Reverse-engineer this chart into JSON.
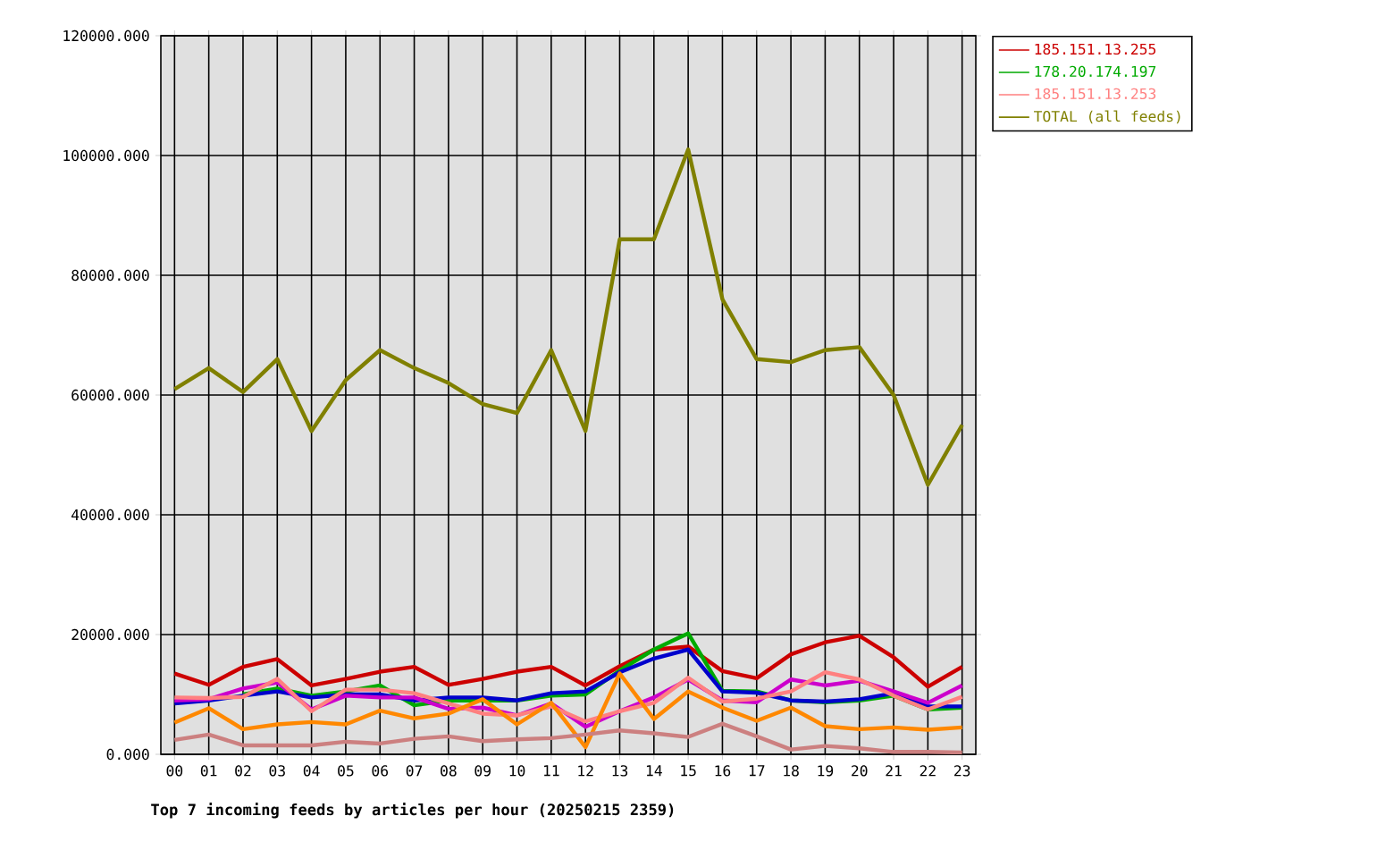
{
  "chart_data": {
    "type": "line",
    "title": "Top 7 incoming feeds by articles per hour (20250215 2359)",
    "categories": [
      "00",
      "01",
      "02",
      "03",
      "04",
      "05",
      "06",
      "07",
      "08",
      "09",
      "10",
      "11",
      "12",
      "13",
      "14",
      "15",
      "16",
      "17",
      "18",
      "19",
      "20",
      "21",
      "22",
      "23"
    ],
    "ylim": [
      0,
      120000
    ],
    "yticks": [
      {
        "value": 0,
        "label": "0.000"
      },
      {
        "value": 20000,
        "label": "20000.000"
      },
      {
        "value": 40000,
        "label": "40000.000"
      },
      {
        "value": 60000,
        "label": "60000.000"
      },
      {
        "value": 80000,
        "label": "80000.000"
      },
      {
        "value": 100000,
        "label": "100000.000"
      },
      {
        "value": 120000,
        "label": "120000.000"
      }
    ],
    "grid": true,
    "legend": "right",
    "series": [
      {
        "name": "185.151.13.255",
        "color": "#cc0000",
        "values": [
          13500,
          11600,
          14600,
          15900,
          11500,
          12600,
          13800,
          14600,
          11600,
          12600,
          13800,
          14600,
          11500,
          14700,
          17500,
          18000,
          13900,
          12700,
          16700,
          18700,
          19800,
          16200,
          11300,
          14600
        ]
      },
      {
        "name": "178.20.174.197",
        "color": "#00aa00",
        "values": [
          null,
          null,
          10000,
          11000,
          9800,
          10500,
          11500,
          8200,
          9000,
          9000,
          9000,
          9800,
          10000,
          14000,
          17500,
          20200,
          10600,
          10500,
          9000,
          8700,
          9000,
          9800,
          7500,
          7800
        ]
      },
      {
        "color": "#0000cc",
        "values": [
          8500,
          9000,
          9800,
          10500,
          9500,
          10000,
          10000,
          9000,
          9500,
          9500,
          9000,
          10200,
          10500,
          13700,
          16000,
          17500,
          10500,
          10300,
          9000,
          8800,
          9200,
          10200,
          8000,
          8000
        ]
      },
      {
        "color": "#cc00cc",
        "values": [
          9000,
          9200,
          11000,
          12000,
          7500,
          9800,
          9500,
          9500,
          7600,
          7800,
          6500,
          8500,
          4600,
          7200,
          9500,
          12500,
          9000,
          8700,
          12500,
          11500,
          12300,
          10500,
          8600,
          11500
        ]
      },
      {
        "name": "185.151.13.253",
        "color": "#ff8080",
        "values": [
          9500,
          9400,
          9600,
          12600,
          7200,
          10800,
          10800,
          10200,
          8500,
          6800,
          6500,
          8000,
          5500,
          7200,
          8600,
          12800,
          8800,
          9300,
          10500,
          13700,
          12500,
          9800,
          7500,
          9600
        ]
      },
      {
        "color": "#ff8800",
        "values": [
          5300,
          7700,
          4200,
          5000,
          5400,
          5000,
          7300,
          6000,
          6800,
          9200,
          5000,
          8600,
          1200,
          13500,
          5900,
          10500,
          7800,
          5600,
          7800,
          4700,
          4200,
          4500,
          4100,
          4500
        ]
      },
      {
        "color": "#cc8080",
        "values": [
          2400,
          3300,
          1500,
          1500,
          1500,
          2100,
          1800,
          2600,
          3000,
          2200,
          2500,
          2700,
          3300,
          4000,
          3500,
          2900,
          5100,
          3000,
          800,
          1400,
          1000,
          400,
          400,
          300
        ]
      },
      {
        "name": "TOTAL (all feeds)",
        "color": "#808000",
        "values": [
          61000,
          64500,
          60500,
          66000,
          54000,
          62500,
          67500,
          64500,
          62000,
          58500,
          57000,
          67500,
          54000,
          86000,
          86000,
          101000,
          76000,
          66000,
          65500,
          67500,
          68000,
          60000,
          45000,
          55000
        ]
      }
    ]
  }
}
